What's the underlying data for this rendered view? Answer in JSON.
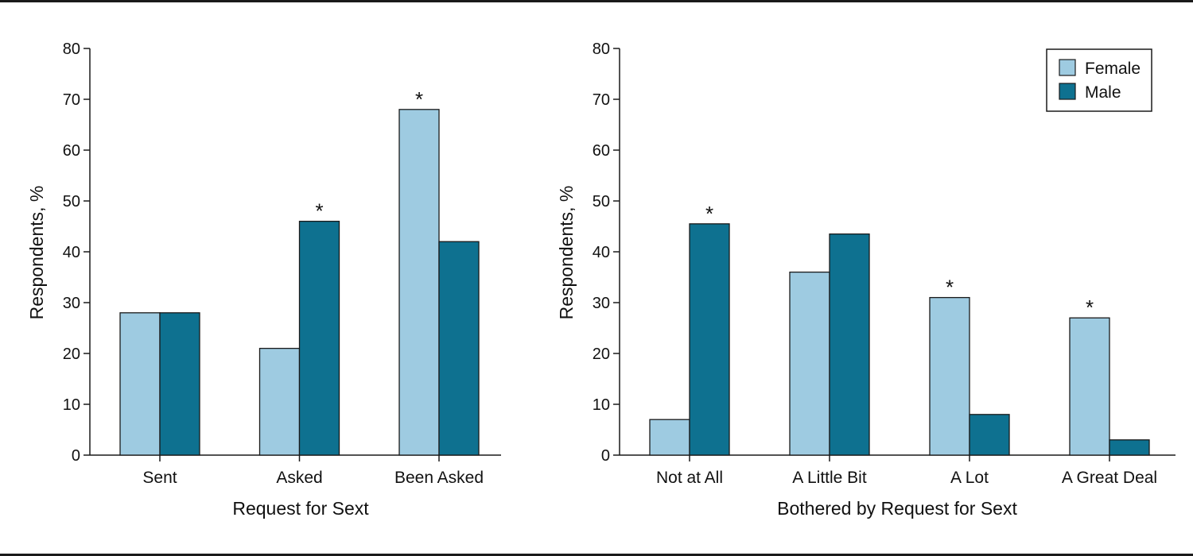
{
  "colors": {
    "female": "#9ecbe1",
    "male": "#0e7190",
    "axis": "#1a1a1a"
  },
  "legend": {
    "female_label": "Female",
    "male_label": "Male",
    "placement": "top-right of right panel"
  },
  "chart_data": [
    {
      "type": "bar",
      "title": "",
      "xlabel": "Request for Sext",
      "ylabel": "Respondents, %",
      "ylim": [
        0,
        80
      ],
      "yticks": [
        0,
        10,
        20,
        30,
        40,
        50,
        60,
        70,
        80
      ],
      "categories": [
        "Sent",
        "Asked",
        "Been Asked"
      ],
      "series": [
        {
          "name": "Female",
          "values": [
            28,
            21,
            68
          ]
        },
        {
          "name": "Male",
          "values": [
            28,
            46,
            42
          ]
        }
      ],
      "annotations": [
        {
          "category": "Asked",
          "text": "*"
        },
        {
          "category": "Been Asked",
          "text": "*"
        }
      ],
      "grid": false
    },
    {
      "type": "bar",
      "title": "",
      "xlabel": "Bothered by Request for Sext",
      "ylabel": "Respondents, %",
      "ylim": [
        0,
        80
      ],
      "yticks": [
        0,
        10,
        20,
        30,
        40,
        50,
        60,
        70,
        80
      ],
      "categories": [
        "Not at All",
        "A Little Bit",
        "A Lot",
        "A Great Deal"
      ],
      "series": [
        {
          "name": "Female",
          "values": [
            7,
            36,
            31,
            27
          ]
        },
        {
          "name": "Male",
          "values": [
            45.5,
            43.5,
            8,
            3
          ]
        }
      ],
      "annotations": [
        {
          "category": "Not at All",
          "text": "*"
        },
        {
          "category": "A Lot",
          "text": "*"
        },
        {
          "category": "A Great Deal",
          "text": "*"
        }
      ],
      "grid": false,
      "legend": true
    }
  ]
}
